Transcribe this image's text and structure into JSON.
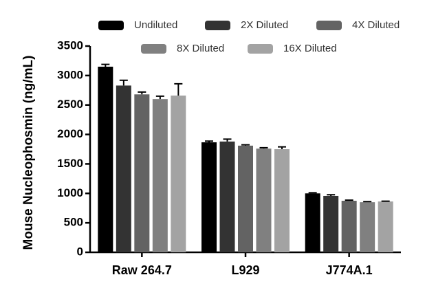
{
  "chart_data": {
    "type": "bar",
    "y_label": "Mouse Nucleophosmin (ng/mL)",
    "categories": [
      "Raw 264.7",
      "L929",
      "J774A.1"
    ],
    "series": [
      {
        "name": "Undiluted",
        "color": "#000000",
        "values": [
          3150,
          1867,
          1000
        ],
        "errors": [
          40,
          20,
          10
        ]
      },
      {
        "name": "2X Diluted",
        "color": "#333333",
        "values": [
          2830,
          1880,
          957
        ],
        "errors": [
          90,
          40,
          20
        ]
      },
      {
        "name": "4X Diluted",
        "color": "#636363",
        "values": [
          2680,
          1810,
          875
        ],
        "errors": [
          40,
          15,
          10
        ]
      },
      {
        "name": "8X Diluted",
        "color": "#808080",
        "values": [
          2600,
          1760,
          850
        ],
        "errors": [
          50,
          15,
          10
        ]
      },
      {
        "name": "16X Diluted",
        "color": "#a3a3a3",
        "values": [
          2660,
          1750,
          863
        ],
        "errors": [
          200,
          40,
          5
        ]
      }
    ],
    "ylim": [
      0,
      3500
    ],
    "yticks": [
      0,
      500,
      1000,
      1500,
      2000,
      2500,
      3000,
      3500
    ]
  }
}
